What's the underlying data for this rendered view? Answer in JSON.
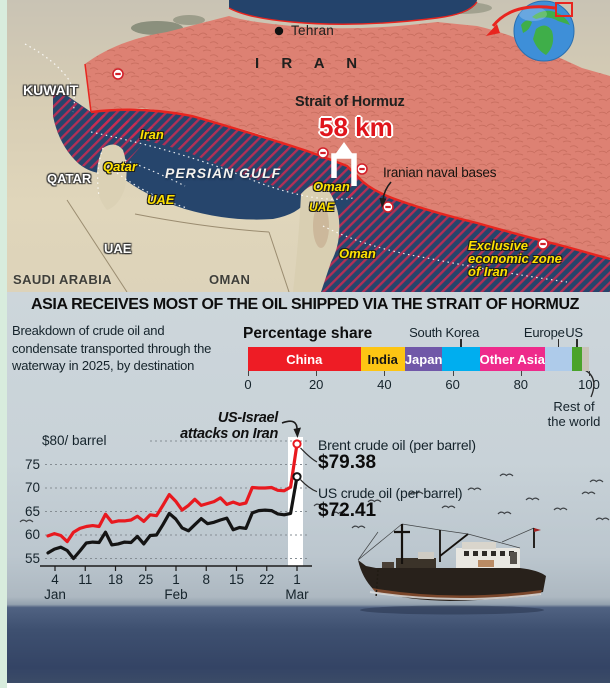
{
  "map": {
    "labels": {
      "kuwait": "KUWAIT",
      "tehran": "Tehran",
      "iran": "I R A N",
      "strait": "Strait of Hormuz",
      "distance": "58 km",
      "iran_eez": "Iran",
      "qatar_it": "Qatar",
      "qatar": "QATAR",
      "persian_gulf": "PERSIAN GULF",
      "uae_it": "UAE",
      "oman_musandam": "Oman",
      "uae_small": "UAE",
      "uae_plain": "UAE",
      "saudi_arabia": "SAUDI ARABIA",
      "oman_plain": "OMAN",
      "oman_coast": "Oman",
      "naval_bases": "Iranian naval bases",
      "eez_line1": "Exclusive",
      "eez_line2": "economic zone",
      "eez_line3": "of Iran"
    }
  },
  "headline": "ASIA RECEIVES MOST OF THE OIL SHIPPED VIA THE STRAIT OF HORMUZ",
  "description_lines": [
    "Breakdown of crude oil and",
    "condensate transported through the",
    "waterway in 2025, by destination"
  ],
  "chart_data": [
    {
      "type": "bar",
      "title": "Percentage share",
      "orientation": "horizontal-stacked",
      "unit": "percent of crude oil and condensate shipped via Strait of Hormuz in 2025",
      "segments": [
        {
          "label": "China",
          "value": 33,
          "color": "#ee1c25",
          "text": "#ffffff",
          "label_pos": "inside"
        },
        {
          "label": "India",
          "value": 13,
          "color": "#fdc513",
          "text": "#141414",
          "label_pos": "inside"
        },
        {
          "label": "Japan",
          "value": 11,
          "color": "#7058a8",
          "text": "#ffffff",
          "label_pos": "inside"
        },
        {
          "label": "South Korea",
          "value": 11,
          "color": "#00aeef",
          "text": "#141414",
          "label_pos": "above"
        },
        {
          "label": "Other Asia",
          "value": 19,
          "color": "#ee2a8b",
          "text": "#ffffff",
          "label_pos": "inside"
        },
        {
          "label": "Europe",
          "value": 8,
          "color": "#aecbea",
          "text": "#141414",
          "label_pos": "above"
        },
        {
          "label": "US",
          "value": 3,
          "color": "#4aa32b",
          "text": "#141414",
          "label_pos": "above"
        },
        {
          "label": "Rest of the world",
          "value": 2,
          "color": "#c9c3b8",
          "text": "#141414",
          "label_pos": "callout"
        }
      ],
      "ticks": [
        0,
        20,
        40,
        60,
        80,
        100
      ]
    },
    {
      "type": "line",
      "ylabel_top": "$80/ barrel",
      "yticks": [
        75,
        70,
        65,
        60,
        55
      ],
      "ylim": [
        53.5,
        80
      ],
      "xticks": [
        "4",
        "11",
        "18",
        "25",
        "1",
        "8",
        "15",
        "22",
        "1"
      ],
      "months": [
        {
          "label": "Jan",
          "tick_index": 0
        },
        {
          "label": "Feb",
          "tick_index": 4
        },
        {
          "label": "Mar",
          "tick_index": 8
        }
      ],
      "annotation_lines": [
        "US-Israel",
        "attacks on Iran"
      ],
      "series": [
        {
          "name": "Brent crude oil (per barrel)",
          "final_label": "$79.38",
          "color": "#e8191f",
          "values": [
            59.8,
            60.3,
            59.9,
            58.6,
            60.6,
            61.4,
            61.8,
            62.0,
            61.8,
            64.4,
            62.7,
            63.0,
            63.0,
            63.2,
            64.0,
            62.9,
            64.3,
            64.1,
            66.3,
            68.6,
            67.2,
            65.3,
            66.3,
            67.6,
            66.3,
            66.7,
            67.1,
            67.9,
            66.5,
            67.0,
            66.5,
            66.8,
            70.1,
            70.0,
            70.0,
            70.1,
            69.5,
            69.4,
            70.2,
            79.38
          ]
        },
        {
          "name": "US crude oil (per barrel)",
          "final_label": "$72.41",
          "color": "#141414",
          "values": [
            56.2,
            57.0,
            57.4,
            56.7,
            55.0,
            56.6,
            58.3,
            58.5,
            58.4,
            60.6,
            57.9,
            58.1,
            58.5,
            58.4,
            59.7,
            58.1,
            59.9,
            60.0,
            62.2,
            64.6,
            63.4,
            61.5,
            60.9,
            62.2,
            63.5,
            62.4,
            62.7,
            63.2,
            63.6,
            61.1,
            61.6,
            61.4,
            64.7,
            65.2,
            65.3,
            65.2,
            64.5,
            64.3,
            64.6,
            72.41
          ]
        }
      ]
    }
  ]
}
